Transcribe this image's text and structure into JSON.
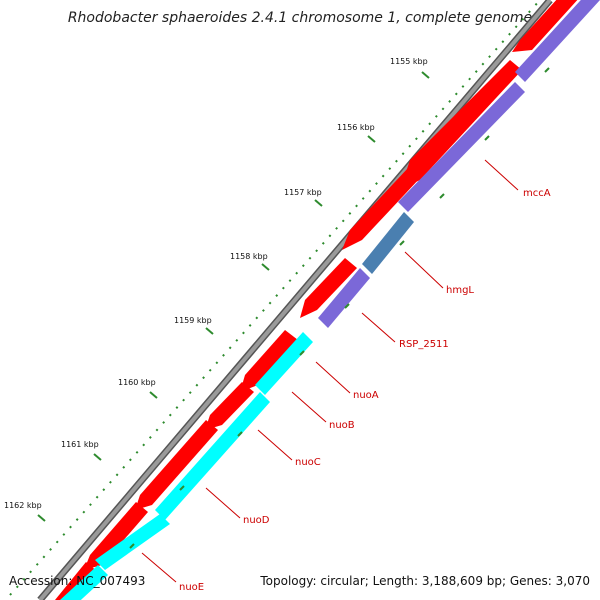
{
  "title": "Rhodobacter sphaeroides 2.4.1 chromosome 1, complete genome",
  "footer": {
    "accession": "Accession: NC_007493",
    "summary": "Topology: circular; Length: 3,188,609 bp; Genes: 3,070"
  },
  "ticks": [
    {
      "label": "1155 kbp"
    },
    {
      "label": "1156 kbp"
    },
    {
      "label": "1157 kbp"
    },
    {
      "label": "1158 kbp"
    },
    {
      "label": "1159 kbp"
    },
    {
      "label": "1160 kbp"
    },
    {
      "label": "1161 kbp"
    },
    {
      "label": "1162 kbp"
    }
  ],
  "genes": [
    {
      "name": "mccA"
    },
    {
      "name": "hmgL"
    },
    {
      "name": "RSP_2511"
    },
    {
      "name": "nuoA"
    },
    {
      "name": "nuoB"
    },
    {
      "name": "nuoC"
    },
    {
      "name": "nuoD"
    },
    {
      "name": "nuoE"
    }
  ],
  "colors": {
    "backbone": "#8a8a8a",
    "forward_cds": "#ff0000",
    "reverse_cds": "#7b68d8",
    "nuo_cds": "#00ffff",
    "overlap_cds": "#4a7fb0",
    "tick_mark": "#2e8b2e",
    "gene_label": "#cc0000"
  }
}
